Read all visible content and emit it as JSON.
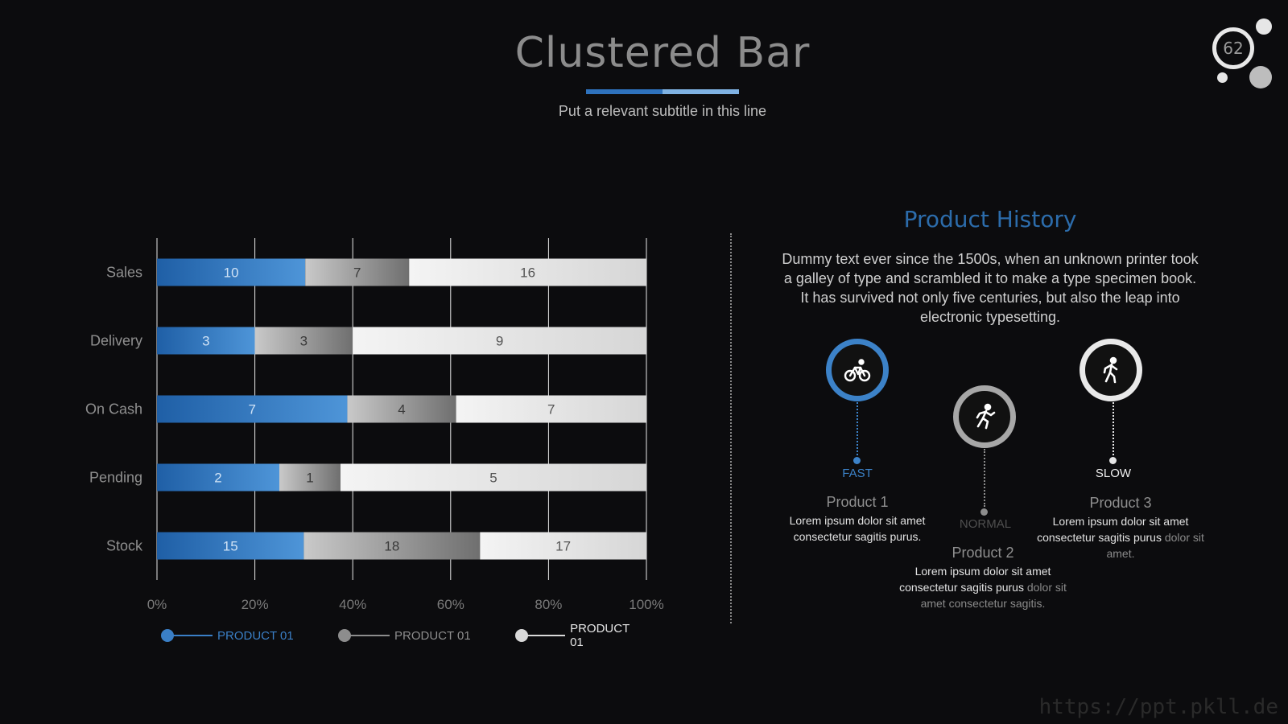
{
  "header": {
    "title": "Clustered Bar",
    "subtitle": "Put a relevant subtitle in this line",
    "page_number": "62"
  },
  "colors": {
    "accent_blue": "#2e72bd",
    "accent_light_blue": "#7fb2e3",
    "series_gray": "#8d8d8d",
    "series_white": "#e6e6e6"
  },
  "chart_data": {
    "type": "bar",
    "orientation": "horizontal",
    "stacked": "percent",
    "categories": [
      "Sales",
      "Delivery",
      "On Cash",
      "Pending",
      "Stock"
    ],
    "series": [
      {
        "name": "PRODUCT 01",
        "color": "#2e72bd",
        "values": [
          10,
          3,
          7,
          2,
          15
        ]
      },
      {
        "name": "PRODUCT 01",
        "color": "#8d8d8d",
        "values": [
          7,
          3,
          4,
          1,
          18
        ]
      },
      {
        "name": "PRODUCT 01",
        "color": "#e6e6e6",
        "values": [
          16,
          9,
          7,
          5,
          17
        ]
      }
    ],
    "x_ticks": [
      "0%",
      "20%",
      "40%",
      "60%",
      "80%",
      "100%"
    ],
    "xlim": [
      0,
      100
    ],
    "grid": true,
    "legend": "bottom",
    "data_labels": true
  },
  "legend": [
    {
      "label": "PRODUCT 01",
      "color": "#3a7fc6",
      "text_color": "#3a7fc6"
    },
    {
      "label": "PRODUCT 01",
      "color": "#8d8d8d",
      "text_color": "#8d8d8d"
    },
    {
      "label": "PRODUCT 01",
      "color": "#d9d9d9",
      "text_color": "#e6e6e6"
    }
  ],
  "product_history": {
    "title": "Product History",
    "text": "Dummy text ever since the 1500s, when an unknown printer took a galley of type and scrambled it to make a type specimen book. It has survived not only five centuries, but also the leap into electronic typesetting.",
    "items": [
      {
        "icon": "bicycle-icon",
        "speed": "FAST",
        "name": "Product 1",
        "desc": "Lorem ipsum dolor sit amet consectetur sagitis purus.",
        "desc_dim": ""
      },
      {
        "icon": "running-person-icon",
        "speed": "NORMAL",
        "name": "Product 2",
        "desc": "Lorem ipsum dolor sit amet consectetur sagitis purus",
        "desc_dim": "dolor sit amet consectetur sagitis."
      },
      {
        "icon": "walking-person-icon",
        "speed": "SLOW",
        "name": "Product 3",
        "desc": "Lorem ipsum dolor sit amet consectetur sagitis purus",
        "desc_dim": "dolor sit amet."
      }
    ]
  },
  "watermark": "https://ppt.pkll.de"
}
